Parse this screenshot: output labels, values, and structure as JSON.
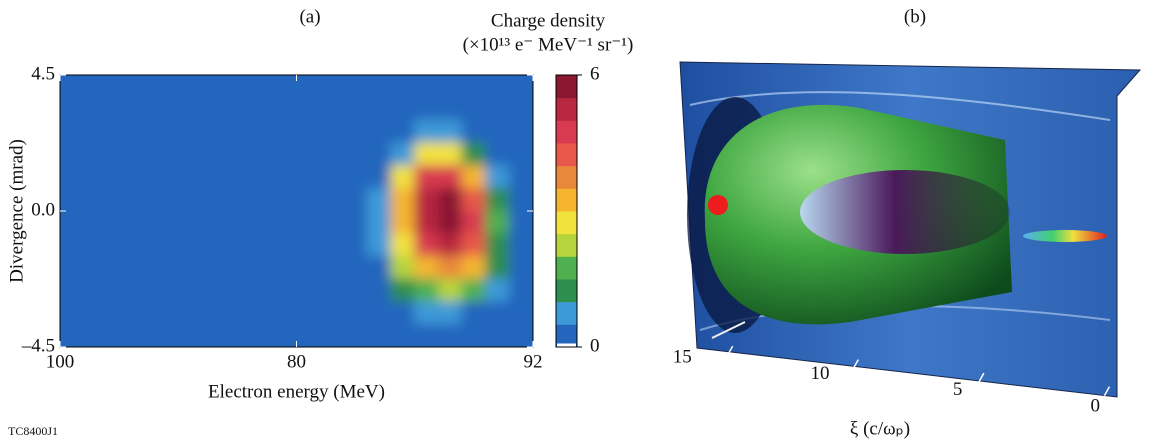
{
  "figure_id": "TC8400J1",
  "chart_data": [
    {
      "type": "heatmap",
      "label": "(a)",
      "xlabel": "Electron energy (MeV)",
      "ylabel": "Divergence (mrad)",
      "xticks": [
        100,
        80,
        92
      ],
      "ylim": [
        -4.5,
        4.5
      ],
      "yticks": [
        4.5,
        {
          "value": 0,
          "label": "0.0"
        },
        {
          "value": -4.5,
          "label": "–4.5"
        }
      ],
      "z": [
        [
          0.3,
          0.3,
          0.3,
          0.3,
          0.3,
          0.3,
          0.3,
          0.3,
          0.3,
          0.3,
          0.3,
          0.3,
          0.3,
          0.3,
          0.3,
          0.3,
          0.3,
          0.3,
          0.3,
          0.3
        ],
        [
          0.3,
          0.3,
          0.3,
          0.3,
          0.3,
          0.3,
          0.3,
          0.3,
          0.3,
          0.3,
          0.3,
          0.3,
          0.3,
          0.3,
          0.3,
          0.3,
          0.3,
          0.3,
          0.3,
          0.3
        ],
        [
          0.3,
          0.3,
          0.3,
          0.3,
          0.3,
          0.3,
          0.3,
          0.3,
          0.3,
          0.3,
          0.3,
          0.3,
          0.3,
          0.3,
          0.3,
          0.6,
          0.6,
          0.3,
          0.3,
          0.3
        ],
        [
          0.3,
          0.3,
          0.3,
          0.3,
          0.3,
          0.3,
          0.3,
          0.3,
          0.3,
          0.3,
          0.3,
          0.3,
          0.3,
          0.3,
          0.8,
          2.5,
          2.8,
          1.0,
          0.3,
          0.3
        ],
        [
          0.3,
          0.3,
          0.3,
          0.3,
          0.3,
          0.3,
          0.3,
          0.3,
          0.3,
          0.3,
          0.3,
          0.3,
          0.3,
          0.3,
          2.8,
          4.5,
          4.8,
          3.0,
          0.8,
          0.3
        ],
        [
          0.3,
          0.3,
          0.3,
          0.3,
          0.3,
          0.3,
          0.3,
          0.3,
          0.3,
          0.3,
          0.3,
          0.3,
          0.3,
          0.8,
          3.2,
          5.0,
          5.6,
          4.2,
          1.2,
          0.3
        ],
        [
          0.3,
          0.3,
          0.3,
          0.3,
          0.3,
          0.3,
          0.3,
          0.3,
          0.3,
          0.3,
          0.3,
          0.3,
          0.3,
          0.9,
          3.0,
          5.2,
          5.8,
          4.5,
          1.5,
          0.3
        ],
        [
          0.3,
          0.3,
          0.3,
          0.3,
          0.3,
          0.3,
          0.3,
          0.3,
          0.3,
          0.3,
          0.3,
          0.3,
          0.3,
          0.8,
          2.6,
          4.6,
          5.2,
          4.2,
          1.4,
          0.3
        ],
        [
          0.3,
          0.3,
          0.3,
          0.3,
          0.3,
          0.3,
          0.3,
          0.3,
          0.3,
          0.3,
          0.3,
          0.3,
          0.3,
          0.3,
          2.2,
          3.4,
          3.8,
          3.2,
          1.0,
          0.3
        ],
        [
          0.3,
          0.3,
          0.3,
          0.3,
          0.3,
          0.3,
          0.3,
          0.3,
          0.3,
          0.3,
          0.3,
          0.3,
          0.3,
          0.3,
          1.2,
          1.8,
          2.0,
          1.6,
          0.6,
          0.3
        ],
        [
          0.3,
          0.3,
          0.3,
          0.3,
          0.3,
          0.3,
          0.3,
          0.3,
          0.3,
          0.3,
          0.3,
          0.3,
          0.3,
          0.3,
          0.3,
          0.6,
          0.6,
          0.3,
          0.3,
          0.3
        ],
        [
          0.3,
          0.3,
          0.3,
          0.3,
          0.3,
          0.3,
          0.3,
          0.3,
          0.3,
          0.3,
          0.3,
          0.3,
          0.3,
          0.3,
          0.3,
          0.3,
          0.3,
          0.3,
          0.3,
          0.3
        ]
      ],
      "colorbar": {
        "title": "Charge density",
        "unit": "(×10¹³ e⁻ MeV⁻¹ sr⁻¹)",
        "clim": [
          0,
          6
        ],
        "ticks": [
          0,
          6
        ],
        "colors": [
          "#2466bd",
          "#3c9ad8",
          "#2d8f4e",
          "#4fb04f",
          "#b6d43c",
          "#f2e23e",
          "#f5b52e",
          "#e8883a",
          "#e8584a",
          "#d83a50",
          "#b82840",
          "#8a1830"
        ]
      }
    },
    {
      "type": "volume",
      "label": "(b)",
      "xlabel": "ξ (c/ωₚ)",
      "xlim": [
        16.5,
        -0.5
      ],
      "xticks": [
        15,
        10,
        5,
        0
      ]
    }
  ]
}
